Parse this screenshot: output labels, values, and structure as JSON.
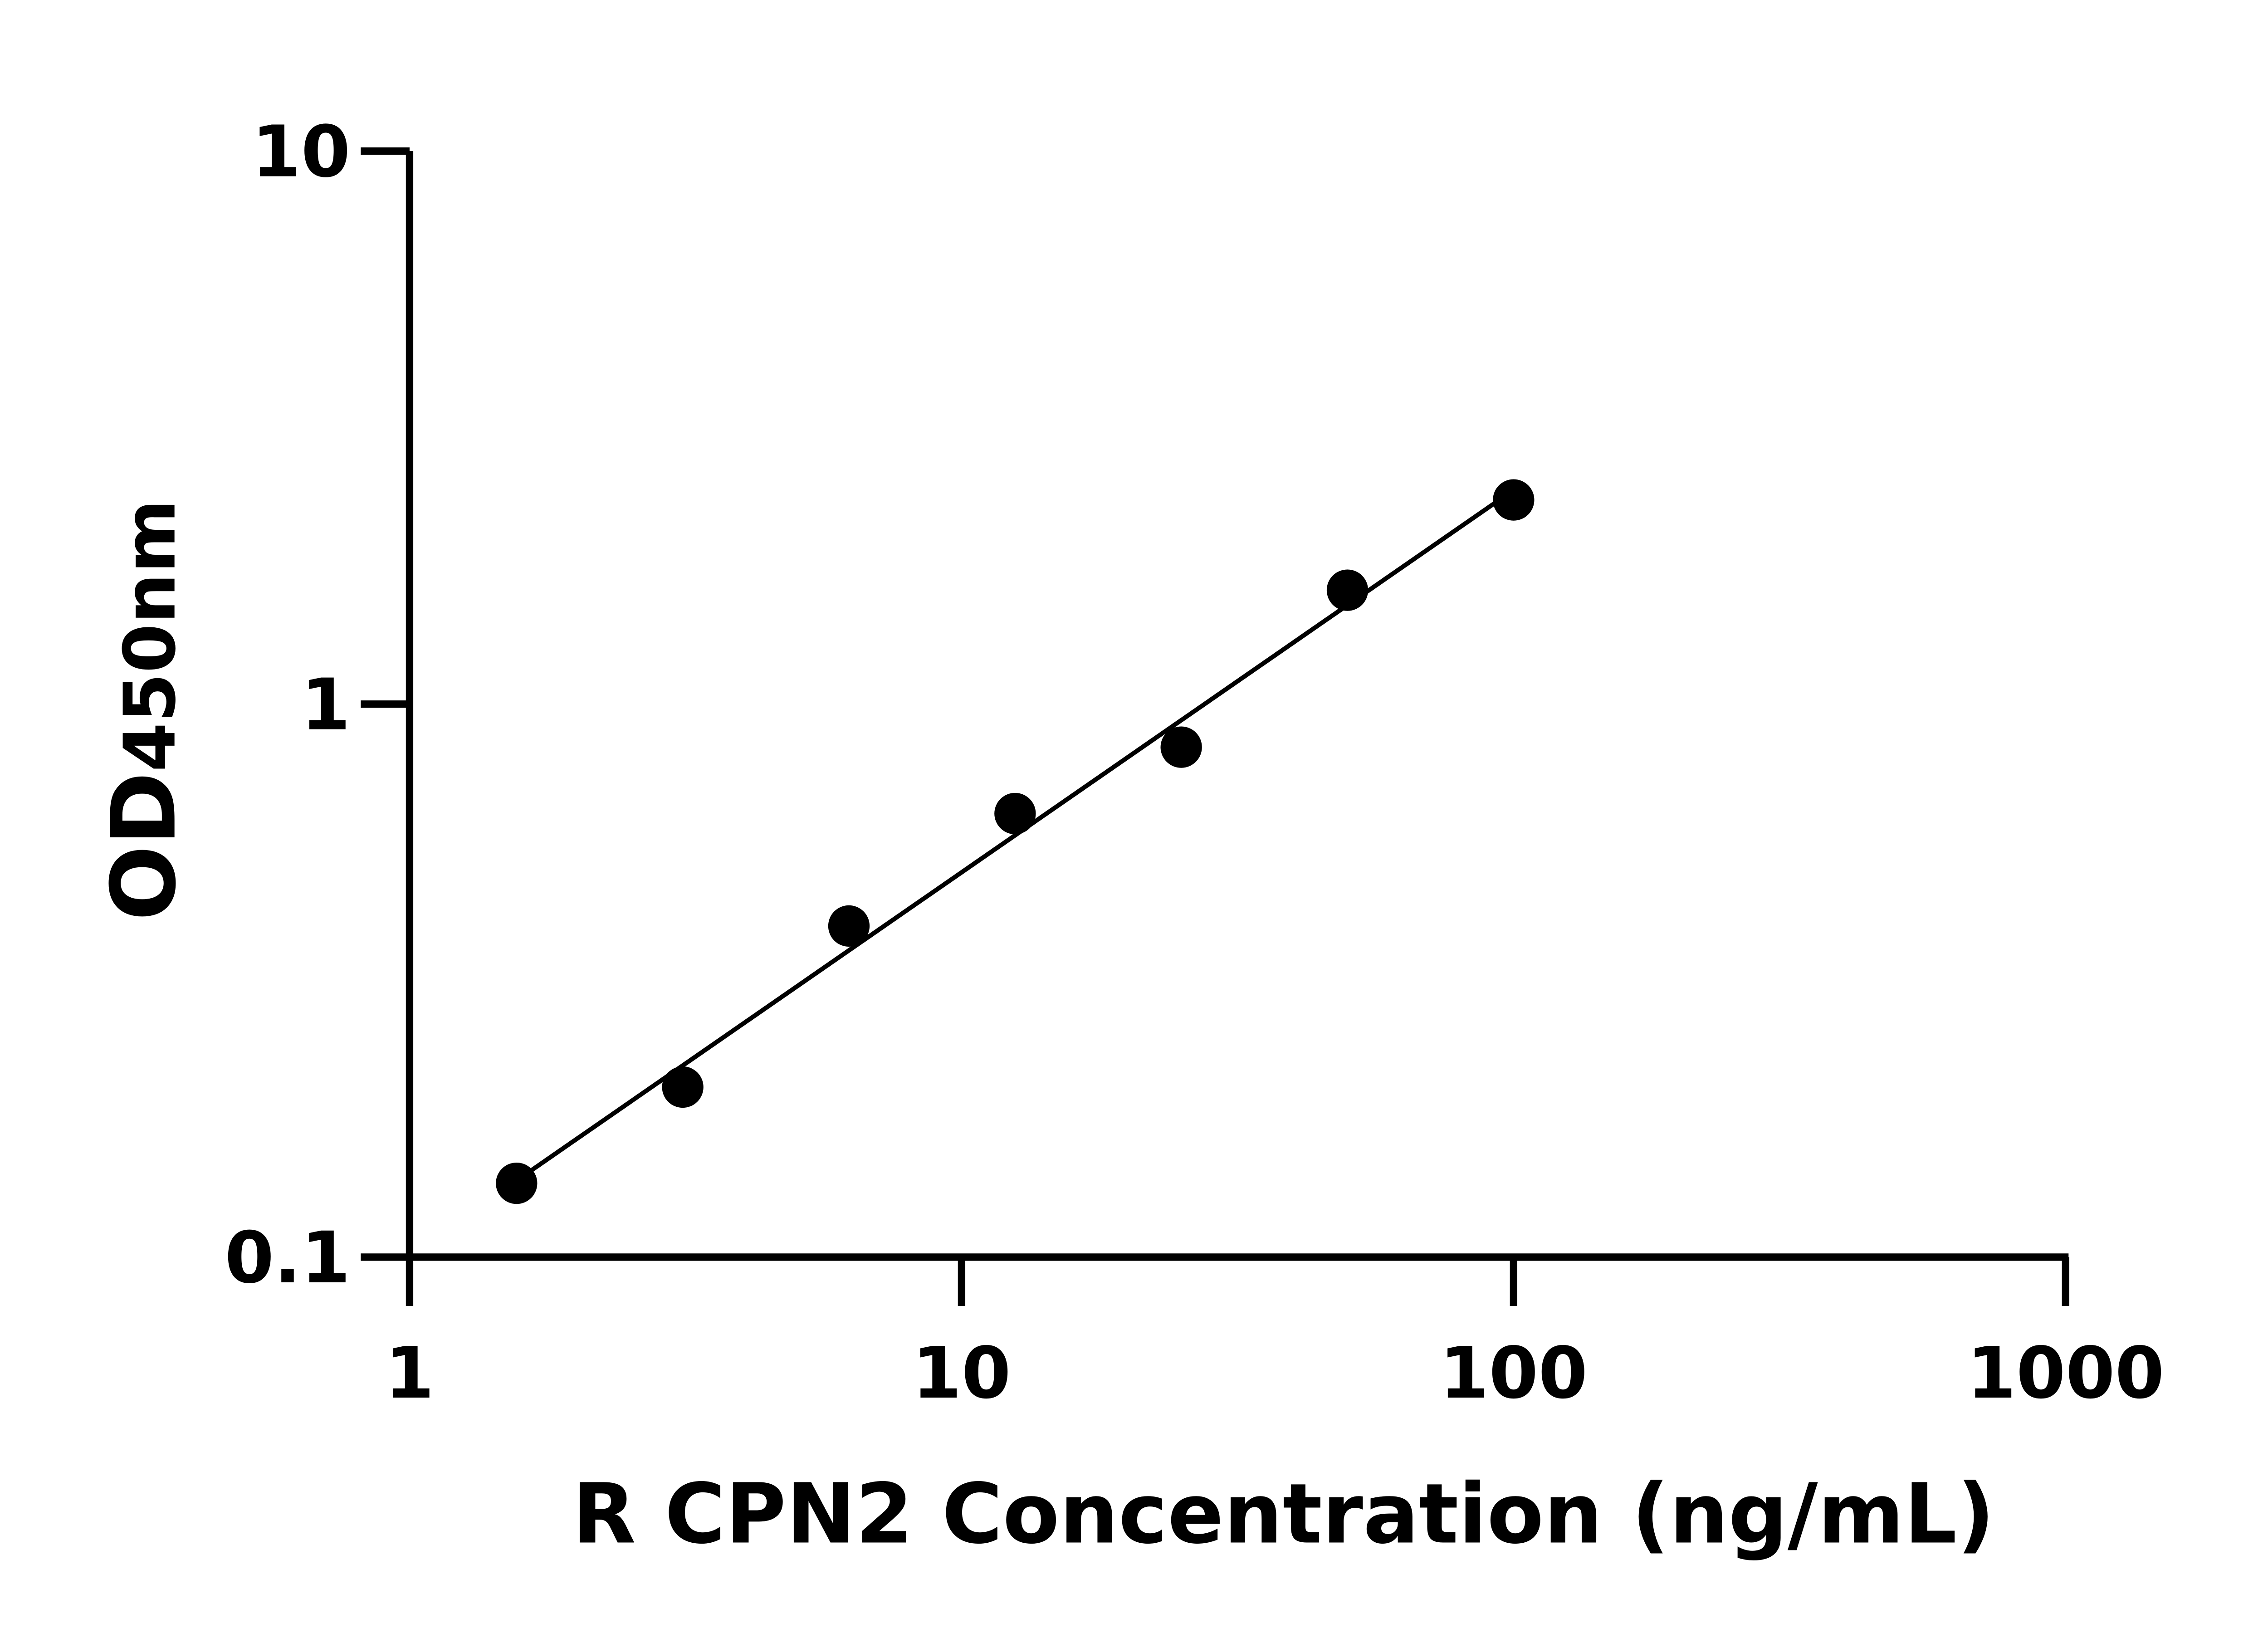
{
  "chart_data": {
    "type": "scatter",
    "title": "",
    "xlabel": "R CPN2 Concentration (ng/mL)",
    "ylabel_main": "OD",
    "ylabel_sub": "450nm",
    "x_scale": "log",
    "y_scale": "log",
    "xlim": [
      1,
      1000
    ],
    "ylim": [
      0.1,
      10
    ],
    "x_ticks": [
      "1",
      "10",
      "100",
      "1000"
    ],
    "y_ticks": [
      "0.1",
      "1",
      "10"
    ],
    "grid": false,
    "legend": "none",
    "fit_line": "linear fit on log-log axes",
    "points": [
      {
        "x": 1.5625,
        "y": 0.136
      },
      {
        "x": 3.125,
        "y": 0.203
      },
      {
        "x": 6.25,
        "y": 0.397
      },
      {
        "x": 12.5,
        "y": 0.634
      },
      {
        "x": 25,
        "y": 0.836
      },
      {
        "x": 50,
        "y": 1.607
      },
      {
        "x": 100,
        "y": 2.34
      }
    ],
    "colors": {
      "points": "#000000",
      "line": "#000000",
      "axes": "#000000"
    }
  }
}
